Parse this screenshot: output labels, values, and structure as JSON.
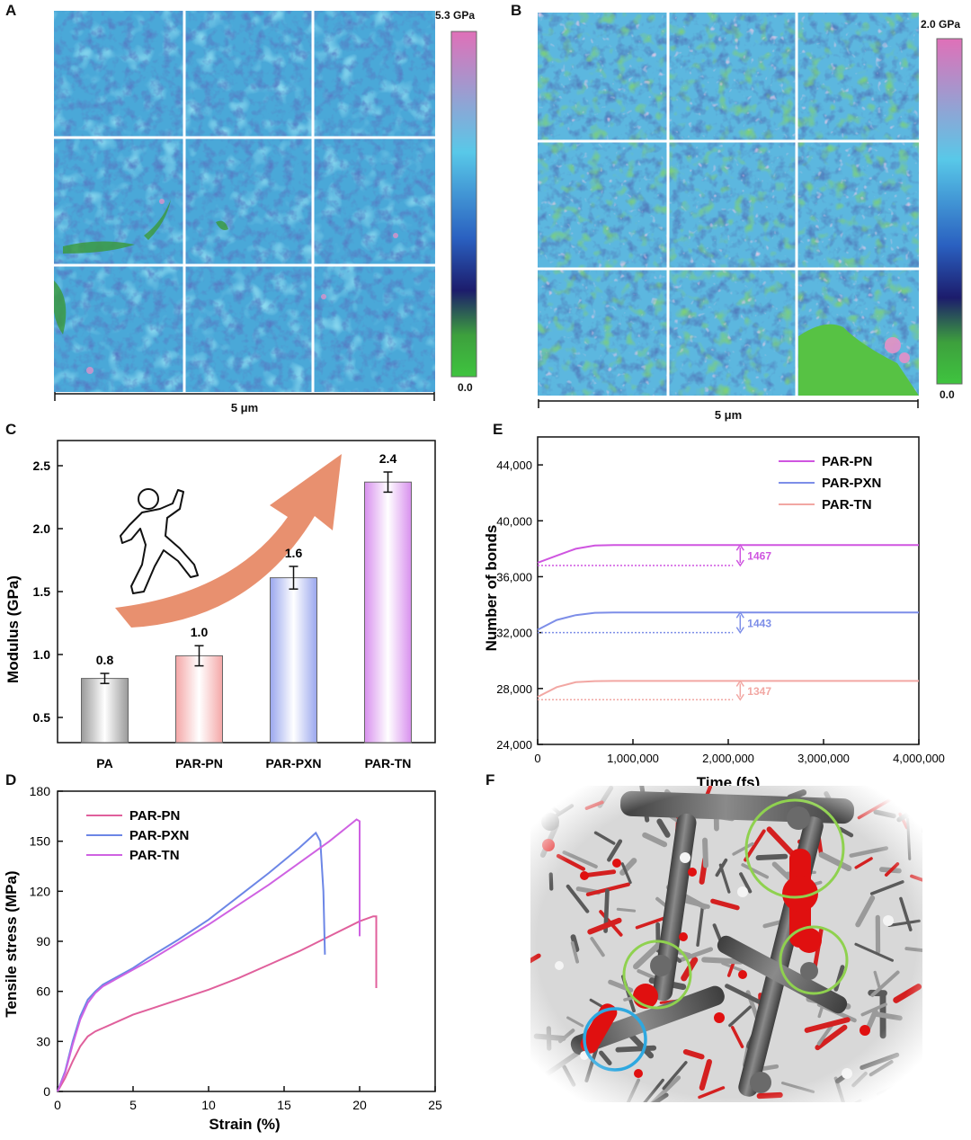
{
  "panels": {
    "a": "A",
    "b": "B",
    "c": "C",
    "d": "D",
    "e": "E",
    "f": "F"
  },
  "map_a": {
    "scale_bar": "5 μm",
    "cbar_max": "5.3 GPa",
    "cbar_min": "0.0",
    "colorbar_colors": [
      "#e070b8",
      "#58c8e8",
      "#2a60c0",
      "#1c1c6c",
      "#3da03d",
      "#3fc43f"
    ]
  },
  "map_b": {
    "scale_bar": "5 μm",
    "cbar_max": "2.0 GPa",
    "cbar_min": "0.0",
    "colorbar_colors": [
      "#e070b8",
      "#58c8e8",
      "#2a60c0",
      "#1c1c6c",
      "#3da03d",
      "#3fc43f"
    ]
  },
  "chart_data": [
    {
      "id": "C",
      "type": "bar",
      "categories": [
        "PA",
        "PAR-PN",
        "PAR-PXN",
        "PAR-TN"
      ],
      "values": [
        0.8,
        1.0,
        1.6,
        2.4
      ],
      "value_labels": [
        "0.8",
        "1.0",
        "1.6",
        "2.4"
      ],
      "plotted_values": [
        0.81,
        0.99,
        1.61,
        2.37
      ],
      "errors": [
        0.04,
        0.08,
        0.09,
        0.08
      ],
      "colors": [
        "#9a9a9a",
        "#f4a7a7",
        "#9aa7ee",
        "#d890ee"
      ],
      "ylabel": "Modulus (GPa)",
      "xlabel": "",
      "yticks": [
        "0.5",
        "1.0",
        "1.5",
        "2.0",
        "2.5"
      ],
      "ylim": [
        0.3,
        2.7
      ],
      "arrow_color": "#e8906f"
    },
    {
      "id": "D",
      "type": "line",
      "xlabel": "Strain (%)",
      "ylabel": "Tensile stress (MPa)",
      "xlim": [
        0,
        25
      ],
      "ylim": [
        0,
        180
      ],
      "xticks": [
        "0",
        "5",
        "10",
        "15",
        "20",
        "25"
      ],
      "yticks": [
        "0",
        "30",
        "60",
        "90",
        "120",
        "150",
        "180"
      ],
      "legend": [
        "PAR-PN",
        "PAR-PXN",
        "PAR-TN"
      ],
      "series": [
        {
          "name": "PAR-PN",
          "color": "#e0609c",
          "x": [
            0,
            0.5,
            1,
            1.5,
            2,
            2.5,
            3,
            4,
            5,
            6,
            8,
            10,
            12,
            14,
            16,
            18,
            20,
            20.9,
            21.1,
            21.1
          ],
          "y": [
            0,
            8,
            18,
            27,
            33,
            36,
            38,
            42,
            46,
            49,
            55,
            61,
            68,
            76,
            84,
            93,
            102,
            105,
            105,
            62
          ]
        },
        {
          "name": "PAR-PXN",
          "color": "#6c86e6",
          "x": [
            0,
            0.5,
            1,
            1.5,
            2,
            2.5,
            3,
            4,
            5,
            6,
            8,
            10,
            12,
            14,
            16,
            17.1,
            17.4,
            17.6,
            17.7
          ],
          "y": [
            0,
            12,
            30,
            45,
            55,
            60,
            64,
            69,
            74,
            80,
            91,
            103,
            117,
            131,
            146,
            155,
            150,
            120,
            82
          ]
        },
        {
          "name": "PAR-TN",
          "color": "#cf62e2",
          "x": [
            0,
            0.5,
            1,
            1.5,
            2,
            2.5,
            3,
            4,
            5,
            6,
            8,
            10,
            12,
            14,
            16,
            18,
            19.8,
            20.0,
            20.0
          ],
          "y": [
            0,
            11,
            28,
            43,
            53,
            59,
            63,
            68,
            73,
            78,
            89,
            100,
            112,
            124,
            137,
            150,
            163,
            162,
            93
          ]
        }
      ]
    },
    {
      "id": "E",
      "type": "line",
      "xlabel": "Time (fs)",
      "ylabel": "Number of bonds",
      "xlim": [
        0,
        4000000
      ],
      "ylim": [
        24000,
        46000
      ],
      "xticks": [
        "0",
        "1,000,000",
        "2,000,000",
        "3,000,000",
        "4,000,000"
      ],
      "yticks": [
        "24,000",
        "28,000",
        "32,000",
        "36,000",
        "40,000",
        "44,000"
      ],
      "legend": [
        "PAR-PN",
        "PAR-PXN",
        "PAR-TN"
      ],
      "series": [
        {
          "name": "PAR-PN",
          "color": "#cf55e0",
          "start": 36800,
          "end": 38270,
          "x": [
            0,
            200000,
            400000,
            600000,
            800000,
            4000000
          ],
          "y": [
            37000,
            37500,
            38000,
            38230,
            38270,
            38270
          ],
          "delta": "1467"
        },
        {
          "name": "PAR-PXN",
          "color": "#7d8ee8",
          "start": 32000,
          "end": 33440,
          "x": [
            0,
            200000,
            400000,
            600000,
            800000,
            4000000
          ],
          "y": [
            32200,
            32900,
            33250,
            33420,
            33440,
            33440
          ],
          "delta": "1443"
        },
        {
          "name": "PAR-TN",
          "color": "#f2a7a3",
          "start": 27200,
          "end": 28540,
          "x": [
            0,
            200000,
            400000,
            600000,
            800000,
            4000000
          ],
          "y": [
            27400,
            28100,
            28450,
            28530,
            28540,
            28540
          ],
          "delta": "1347"
        }
      ]
    }
  ],
  "panel_f": {
    "circle_green": "#8fd14f",
    "circle_blue": "#2ea8e0",
    "bond_red": "#e01010",
    "bond_gray": "#6a6a6a"
  }
}
